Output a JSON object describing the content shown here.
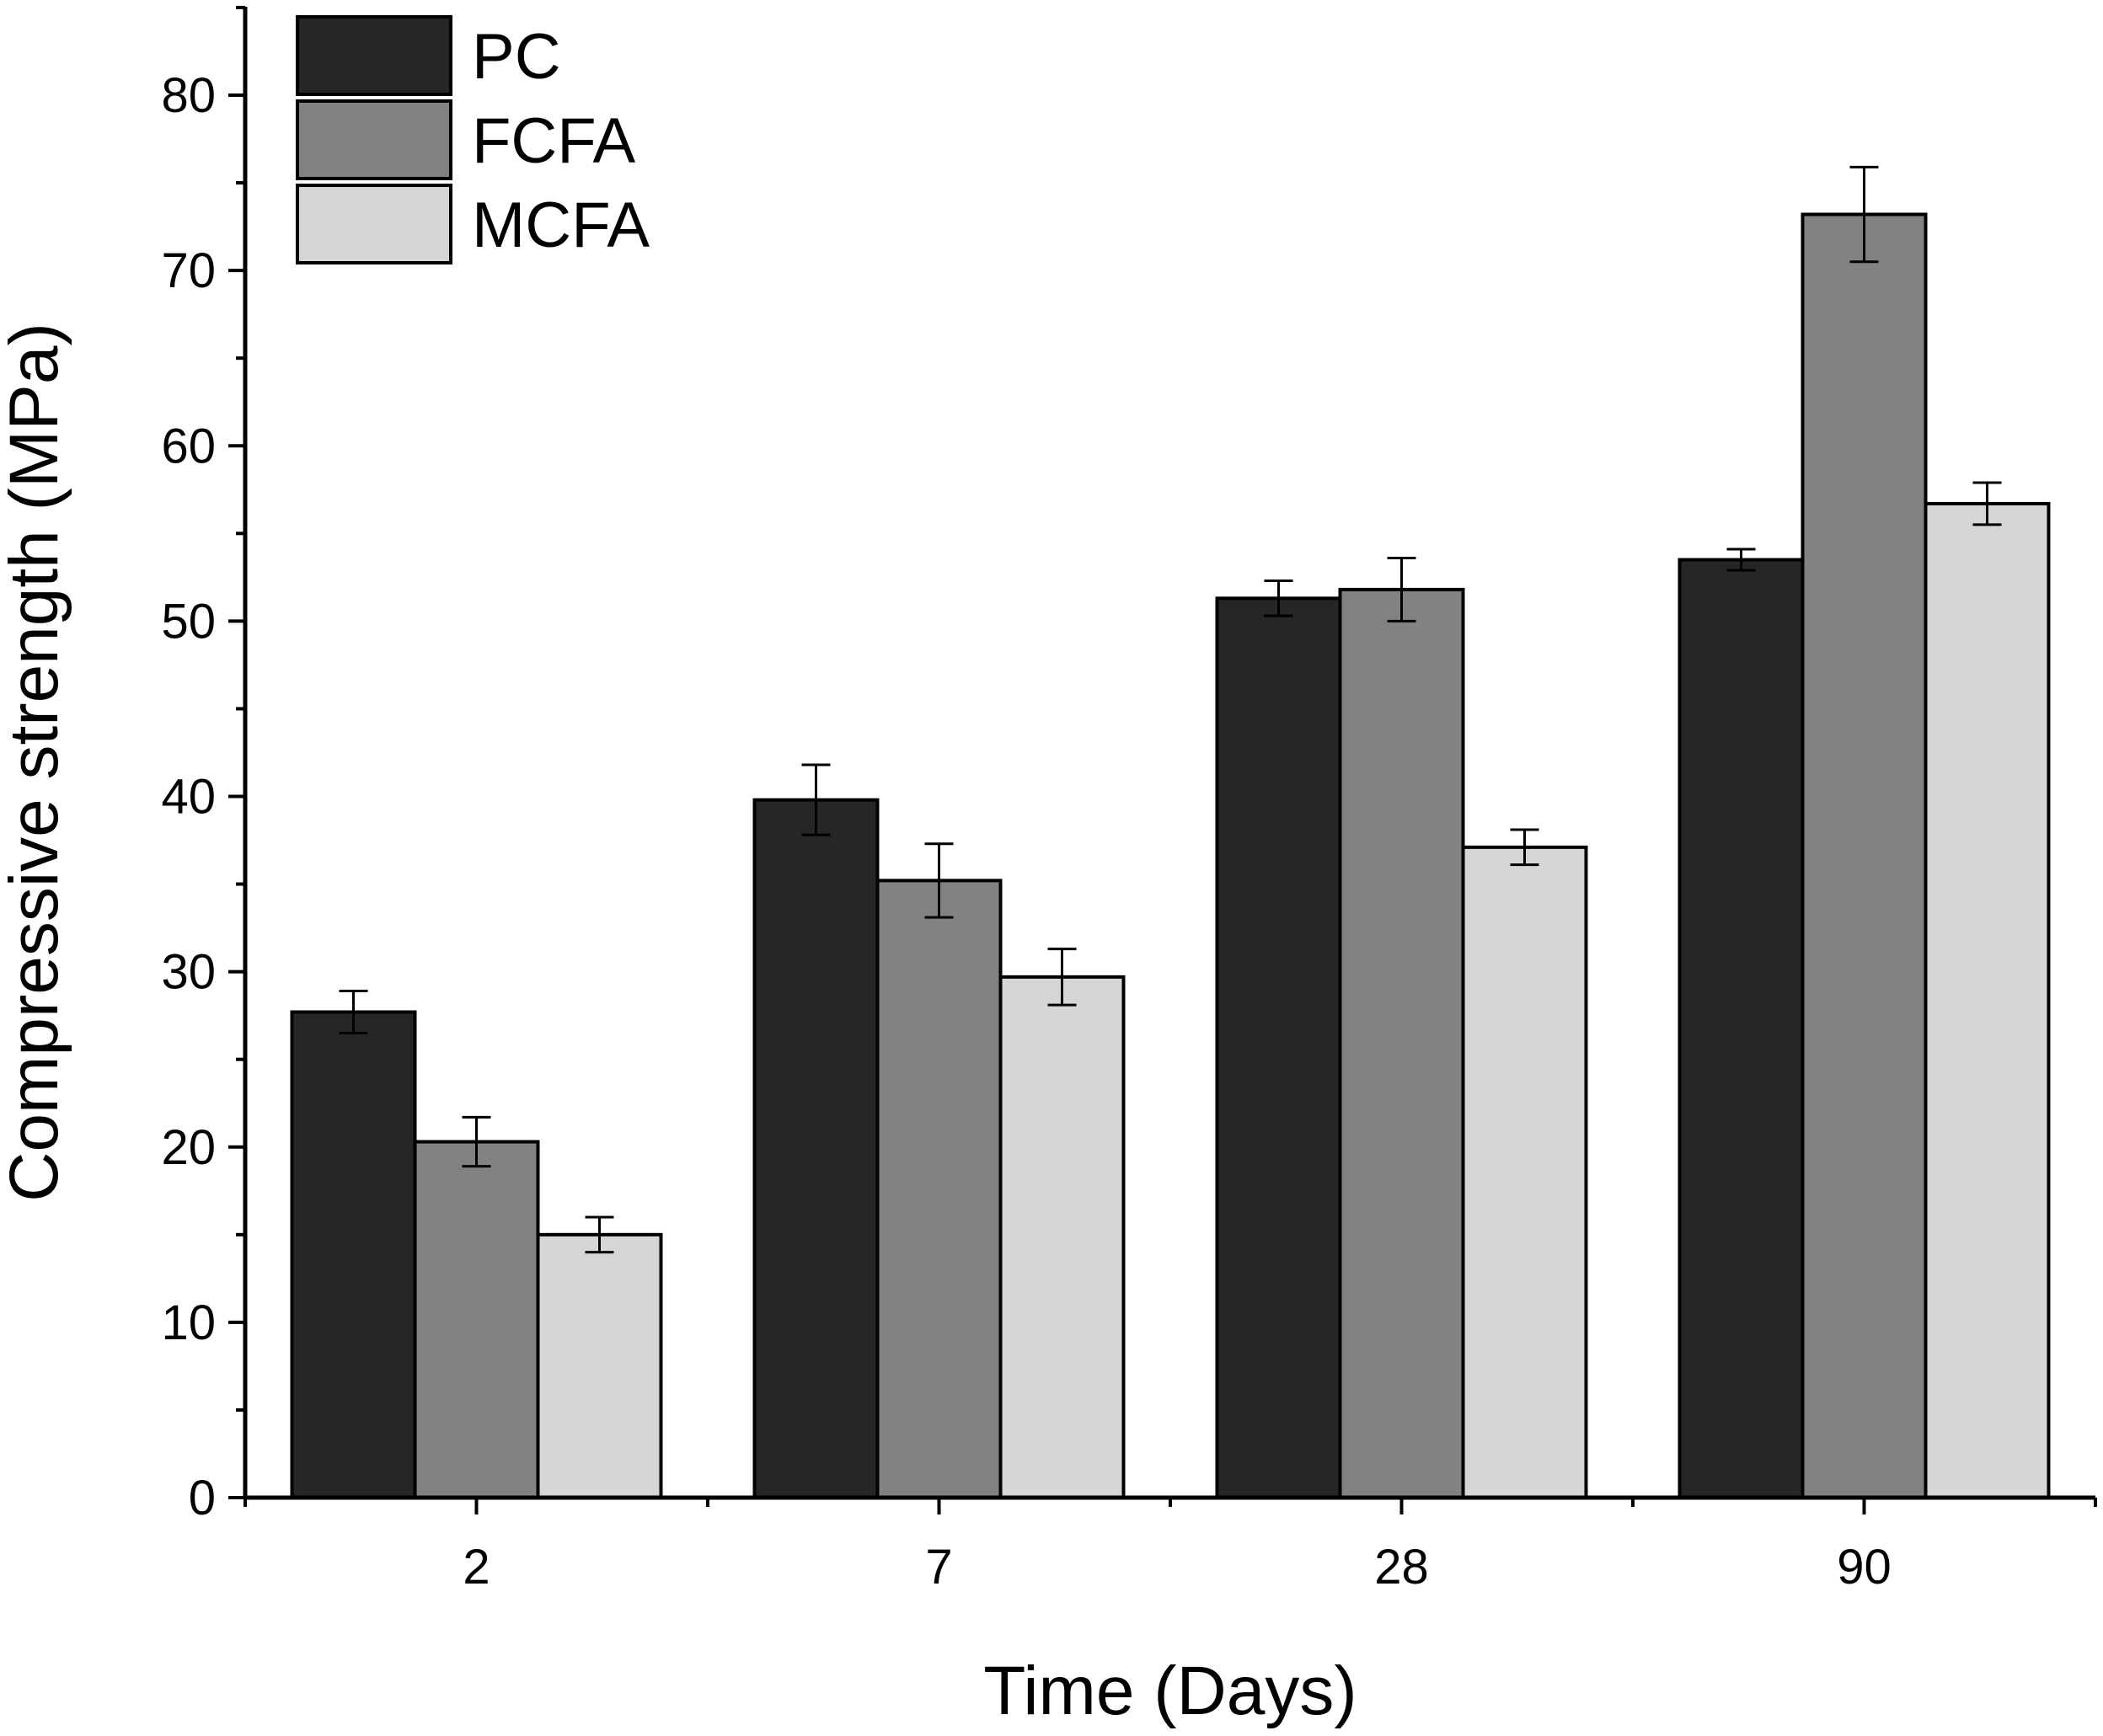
{
  "chart_data": {
    "type": "bar",
    "title": "",
    "xlabel": "Time (Days)",
    "ylabel": "Compressive strength (MPa)",
    "categories": [
      "2",
      "7",
      "28",
      "90"
    ],
    "ylim": [
      0,
      85
    ],
    "yticks": [
      0,
      10,
      20,
      30,
      40,
      50,
      60,
      70,
      80
    ],
    "grid": false,
    "legend_position": "top-left",
    "series": [
      {
        "name": "PC",
        "color": "#262626",
        "values": [
          27.7,
          39.8,
          51.3,
          53.5
        ],
        "errors": [
          1.2,
          2.0,
          1.0,
          0.6
        ]
      },
      {
        "name": "FCFA",
        "color": "#828282",
        "values": [
          20.3,
          35.2,
          51.8,
          73.2
        ],
        "errors": [
          1.4,
          2.1,
          1.8,
          2.7
        ]
      },
      {
        "name": "MCFA",
        "color": "#d6d6d6",
        "values": [
          15.0,
          29.7,
          37.1,
          56.7
        ],
        "errors": [
          1.0,
          1.6,
          1.0,
          1.2
        ]
      }
    ]
  }
}
